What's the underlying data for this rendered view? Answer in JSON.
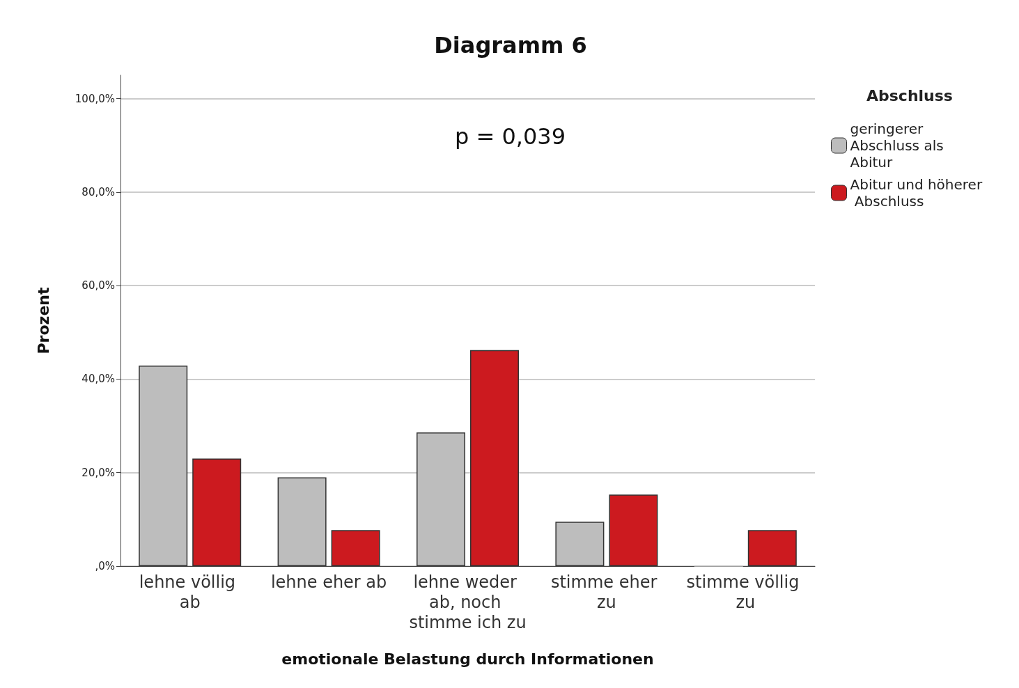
{
  "chart_data": {
    "type": "bar",
    "title": "Diagramm 6",
    "xlabel": "emotionale Belastung durch Informationen",
    "ylabel": "Prozent",
    "legend_title": "Abschluss",
    "annotations": [
      "p = 0,039"
    ],
    "categories": [
      "lehne völlig ab",
      "lehne eher ab",
      "lehne weder ab, noch stimme ich zu",
      "stimme eher zu",
      "stimme völlig zu"
    ],
    "series": [
      {
        "name": "geringerer Abschluss als Abitur",
        "color": "#bdbdbd",
        "values": [
          42.9,
          19.0,
          28.6,
          9.5,
          0
        ]
      },
      {
        "name": "Abitur und höherer Abschluss",
        "color": "#cc1a1f",
        "values": [
          23.0,
          7.7,
          46.2,
          15.3,
          7.7
        ]
      }
    ],
    "ylim": [
      0,
      105
    ],
    "yticks": [
      {
        "value": 0,
        "label": ",0%"
      },
      {
        "value": 20,
        "label": "20,0%"
      },
      {
        "value": 40,
        "label": "40,0%"
      },
      {
        "value": 60,
        "label": "60,0%"
      },
      {
        "value": 80,
        "label": "80,0%"
      },
      {
        "value": 100,
        "label": "100,0%"
      }
    ],
    "grid": "y",
    "legend": "top right"
  }
}
